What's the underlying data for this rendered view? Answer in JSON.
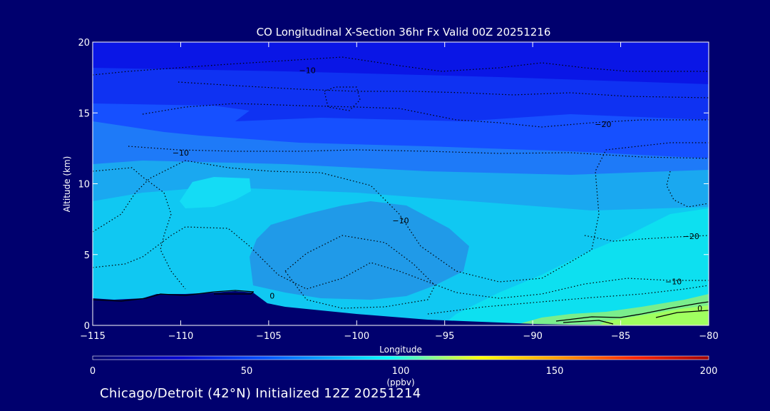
{
  "chart_data": {
    "type": "heatmap",
    "title": "CO Longitudinal X-Section 36hr  Fx Valid 00Z 20251216",
    "xlabel": "Longitude",
    "ylabel": "Altitude (km)",
    "xlim": [
      -115,
      -80
    ],
    "ylim": [
      0,
      20
    ],
    "x_ticks": [
      -115,
      -110,
      -105,
      -100,
      -95,
      -90,
      -85,
      -80
    ],
    "x_tick_labels": [
      "−115",
      "−110",
      "−105",
      "−100",
      "−95",
      "−90",
      "−85",
      "−80"
    ],
    "y_ticks": [
      0,
      5,
      10,
      15,
      20
    ],
    "y_tick_labels": [
      "0",
      "5",
      "10",
      "15",
      "20"
    ],
    "colorbar": {
      "range": [
        0,
        200
      ],
      "ticks": [
        0,
        50,
        100,
        150,
        200
      ],
      "tick_labels": [
        "0",
        "50",
        "100",
        "150",
        "200"
      ],
      "unit": "(ppbv)",
      "colors": [
        "#00006e",
        "#0000c8",
        "#0044ff",
        "#00b0ff",
        "#00ffff",
        "#70ff90",
        "#ffff00",
        "#ffa000",
        "#ff3000",
        "#b00000"
      ]
    },
    "contour_labels": [
      {
        "text": "−10",
        "lon": -102.8,
        "alt": 18.0
      },
      {
        "text": "−10",
        "lon": -110.0,
        "alt": 12.2
      },
      {
        "text": "−20",
        "lon": -86.0,
        "alt": 14.2
      },
      {
        "text": "−10",
        "lon": -97.5,
        "alt": 7.4
      },
      {
        "text": "−20",
        "lon": -81.0,
        "alt": 6.3
      },
      {
        "text": "−10",
        "lon": -82.0,
        "alt": 3.1
      },
      {
        "text": "0",
        "lon": -80.5,
        "alt": 1.2
      },
      {
        "text": "0",
        "lon": -104.8,
        "alt": 2.1
      }
    ],
    "field": {
      "bands": [
        {
          "alt_top": 20,
          "ppbv": 42
        },
        {
          "alt_top": 18,
          "ppbv": 48
        },
        {
          "alt_top": 16,
          "ppbv": 56
        },
        {
          "alt_top": 14,
          "ppbv": 64
        },
        {
          "alt_top": 11,
          "ppbv": 78
        },
        {
          "alt_top": 8,
          "ppbv": 84
        }
      ],
      "features": [
        {
          "name": "mid-troposphere minimum",
          "ppbv": 70
        },
        {
          "name": "upper maximum near -108",
          "ppbv": 90
        },
        {
          "name": "eastern boundary layer maximum",
          "ppbv": 110
        }
      ]
    },
    "terrain": "Rocky Mountains between -115 and -104 up to 2.5 km"
  },
  "footer": "Chicago/Detroit (42°N) Initialized 12Z 20251214"
}
